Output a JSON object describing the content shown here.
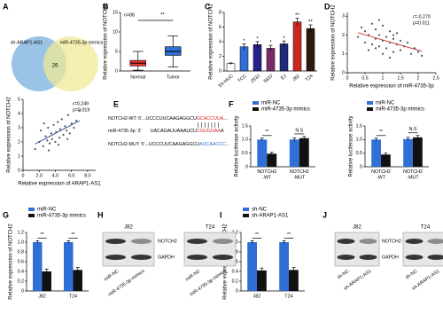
{
  "panels": [
    "A",
    "B",
    "C",
    "D",
    "E",
    "F",
    "G",
    "H",
    "I",
    "J"
  ],
  "venn": {
    "left": "sh-ARAP1-AS1",
    "right": "miR-4735-3p mimics",
    "overlap": "26"
  },
  "chart_data": [
    {
      "type": "box",
      "ylabel": "Relative expression of NOTCH2",
      "categories": [
        "Normal",
        "Tumor"
      ],
      "min": [
        0.2,
        1.0
      ],
      "q1": [
        1.3,
        4.0
      ],
      "median": [
        2.0,
        5.0
      ],
      "q3": [
        2.7,
        6.2
      ],
      "max": [
        5.0,
        9.0
      ],
      "colors": [
        "#e8312f",
        "#2f6fd6"
      ],
      "annotations": [
        "n=88",
        "**"
      ],
      "ylim": [
        0,
        15
      ],
      "yticks": [
        0,
        5,
        10,
        15
      ]
    },
    {
      "type": "bar",
      "ylabel": "Relative expression of NOTCH2",
      "categories": [
        "SV-HUC",
        "TCC",
        "253J",
        "5637",
        "EJ",
        "J82",
        "T24"
      ],
      "values": [
        1.0,
        3.3,
        3.6,
        3.1,
        3.7,
        6.7,
        5.8
      ],
      "errors": [
        0.1,
        0.4,
        0.4,
        0.4,
        0.4,
        0.5,
        0.5
      ],
      "colors": [
        "#ffffff",
        "#2f6fd6",
        "#23238a",
        "#7a2a6a",
        "#1f2a7a",
        "#c8281e",
        "#2a1a10"
      ],
      "annotations": [
        null,
        "*",
        "*",
        "*",
        "*",
        "**",
        "**"
      ],
      "ylim": [
        0,
        8
      ],
      "yticks": [
        0,
        2,
        4,
        6,
        8
      ]
    },
    {
      "type": "scatter",
      "ylabel": "Relative expression of NOTCH2",
      "xlabel": "Relative expression of miR-4735-3p",
      "x": [
        0.3,
        0.4,
        0.5,
        0.5,
        0.6,
        0.7,
        0.7,
        0.8,
        0.8,
        0.9,
        0.9,
        1.0,
        1.0,
        1.1,
        1.1,
        1.2,
        1.2,
        1.3,
        1.3,
        1.4,
        1.4,
        1.5,
        1.5,
        1.6,
        1.7,
        1.8,
        1.9,
        2.0,
        2.1,
        0.6,
        0.9,
        1.2,
        1.0,
        0.8,
        1.3
      ],
      "y": [
        1.9,
        2.4,
        1.6,
        2.2,
        2.0,
        1.5,
        2.6,
        1.8,
        2.3,
        1.4,
        2.0,
        1.7,
        2.5,
        1.3,
        1.9,
        1.6,
        2.2,
        1.1,
        1.8,
        1.5,
        2.1,
        1.2,
        1.7,
        1.4,
        1.6,
        1.0,
        1.3,
        1.1,
        0.9,
        1.2,
        2.8,
        0.8,
        1.0,
        1.3,
        2.0
      ],
      "color": "#555555",
      "fit_color": "#d23a3a",
      "annotations": [
        "r=-0.270",
        "p=0.011"
      ],
      "xlim": [
        0,
        2.5
      ],
      "ylim": [
        0,
        3.2
      ],
      "xticks": [
        0,
        0.5,
        1,
        1.5,
        2,
        2.5
      ],
      "yticks": [
        0,
        1,
        2,
        3
      ]
    },
    {
      "type": "scatter",
      "ylabel": "Relative expression of NOTCH2",
      "xlabel": "Relative expression of ARAP1-AS1",
      "x": [
        1.5,
        2.0,
        2.2,
        2.5,
        2.8,
        3.0,
        3.1,
        3.3,
        3.5,
        3.6,
        3.8,
        4.0,
        4.1,
        4.3,
        4.5,
        4.6,
        4.8,
        5.0,
        5.2,
        5.4,
        5.6,
        5.8,
        6.0,
        6.3,
        6.6,
        7.0,
        3.2,
        4.4,
        5.5,
        2.6
      ],
      "y": [
        1.5,
        2.0,
        2.8,
        1.7,
        2.4,
        2.1,
        3.0,
        1.9,
        2.6,
        2.2,
        3.2,
        2.0,
        2.7,
        3.4,
        2.3,
        2.9,
        3.6,
        2.5,
        3.1,
        2.8,
        3.9,
        2.6,
        3.3,
        3.0,
        3.5,
        4.2,
        1.4,
        1.8,
        2.2,
        3.3
      ],
      "color": "#555555",
      "fit_color": "#3a4fa0",
      "annotations": [
        "r=0.249",
        "p=0.019"
      ],
      "xlim": [
        0,
        9
      ],
      "ylim": [
        0,
        5
      ],
      "xticks": [
        0,
        {
          "value": 2,
          "label": "2.0"
        },
        {
          "value": 4,
          "label": "4.0"
        },
        {
          "value": 6,
          "label": "6.0"
        },
        {
          "value": 8,
          "label": "8.0"
        }
      ],
      "yticks": [
        0,
        1,
        2,
        3,
        4,
        5
      ]
    },
    {
      "type": "grouped_bar",
      "ylabel": "Relative luciferase activity",
      "categories": [
        "NOTCH2 -WT",
        "NOTCH2 -MUT"
      ],
      "series": [
        {
          "name": "miR-NC",
          "color": "#2f6fd6",
          "values": [
            1.0,
            1.0
          ],
          "errors": [
            0.05,
            0.06
          ]
        },
        {
          "name": "miR-4735-3p mimics",
          "color": "#111111",
          "values": [
            0.48,
            1.05
          ],
          "errors": [
            0.05,
            0.06
          ]
        }
      ],
      "annotations": [
        "**",
        "N.S"
      ],
      "ylim": [
        0,
        1.5
      ],
      "yticks": [
        0,
        0.5,
        {
          "value": 1,
          "label": "1.0"
        },
        1.5
      ]
    },
    {
      "type": "grouped_bar",
      "ylabel": "Relative luciferase activity",
      "categories": [
        "NOTCH2 -WT",
        "NOTCH2 -MUT"
      ],
      "series": [
        {
          "name": "miR-NC",
          "color": "#2f6fd6",
          "values": [
            1.0,
            1.02
          ],
          "errors": [
            0.05,
            0.06
          ]
        },
        {
          "name": "miR-4735-3p mimics",
          "color": "#111111",
          "values": [
            0.45,
            1.08
          ],
          "errors": [
            0.05,
            0.07
          ]
        }
      ],
      "annotations": [
        "**",
        "N.S"
      ],
      "ylim": [
        0,
        1.5
      ],
      "yticks": [
        0,
        0.5,
        {
          "value": 1,
          "label": "1.0"
        },
        1.5
      ]
    },
    {
      "type": "grouped_bar",
      "ylabel": "Relative expression of NOTCH2",
      "categories": [
        "J82",
        "T24"
      ],
      "series": [
        {
          "name": "miR-NC",
          "color": "#2f6fd6",
          "values": [
            1.0,
            1.0
          ],
          "errors": [
            0.03,
            0.03
          ]
        },
        {
          "name": "miR-4735-3p mimics",
          "color": "#111111",
          "values": [
            0.4,
            0.43
          ],
          "errors": [
            0.05,
            0.05
          ]
        }
      ],
      "annotations": [
        "**",
        "**"
      ],
      "ylim": [
        0,
        1.2
      ],
      "yticks": [
        0,
        0.2,
        0.4,
        0.6,
        0.8,
        {
          "value": 1,
          "label": "1.0"
        },
        1.2
      ]
    },
    {
      "type": "grouped_bar",
      "ylabel": "Relative expression of NOTCH2",
      "categories": [
        "J82",
        "T24"
      ],
      "series": [
        {
          "name": "sh-NC",
          "color": "#2f6fd6",
          "values": [
            1.0,
            1.0
          ],
          "errors": [
            0.03,
            0.03
          ]
        },
        {
          "name": "sh-ARAP1-AS1",
          "color": "#111111",
          "values": [
            0.42,
            0.43
          ],
          "errors": [
            0.05,
            0.05
          ]
        }
      ],
      "annotations": [
        "**",
        "**"
      ],
      "ylim": [
        0,
        1.2
      ],
      "yticks": [
        0,
        0.2,
        0.4,
        0.6,
        0.8,
        {
          "value": 1,
          "label": "1.0"
        },
        1.2
      ]
    }
  ],
  "sequences": {
    "lines": [
      {
        "parts": [
          {
            "text": "NOTCH2-WT: 5'...UCCCUUCAAGAGGCU",
            "color": "#000000"
          },
          {
            "text": "GCACCUUA",
            "color": "#d42020"
          },
          {
            "text": "...",
            "color": "#000000"
          }
        ]
      },
      {
        "parts": [
          {
            "text": "miR-4735-3p: 3'",
            "color": "#000000"
          },
          {
            "text": "UACAGAUUAAAUCU",
            "color": "#000000"
          },
          {
            "text": "CGUGGAA",
            "color": "#d42020"
          },
          {
            "text": "A",
            "color": "#000000"
          }
        ]
      },
      {
        "parts": [
          {
            "text": "NOTCH2-MUT: 5'...UCCCUUCAAGAGGCU",
            "color": "#000000"
          },
          {
            "text": "AUCAACCC",
            "color": "#2a6fc0"
          },
          {
            "text": "...",
            "color": "#000000"
          }
        ]
      }
    ]
  },
  "blots": [
    {
      "cells": [
        "J82",
        "T24"
      ],
      "bands": [
        "NOTCH2",
        "GAPDH"
      ],
      "lanes": [
        "miR-NC",
        "miR-4735-3p mimics"
      ]
    },
    {
      "cells": [
        "J82",
        "T24"
      ],
      "bands": [
        "NOTCH2",
        "GAPDH"
      ],
      "lanes": [
        "sh-NC",
        "sh-ARAP1-AS1"
      ]
    }
  ]
}
